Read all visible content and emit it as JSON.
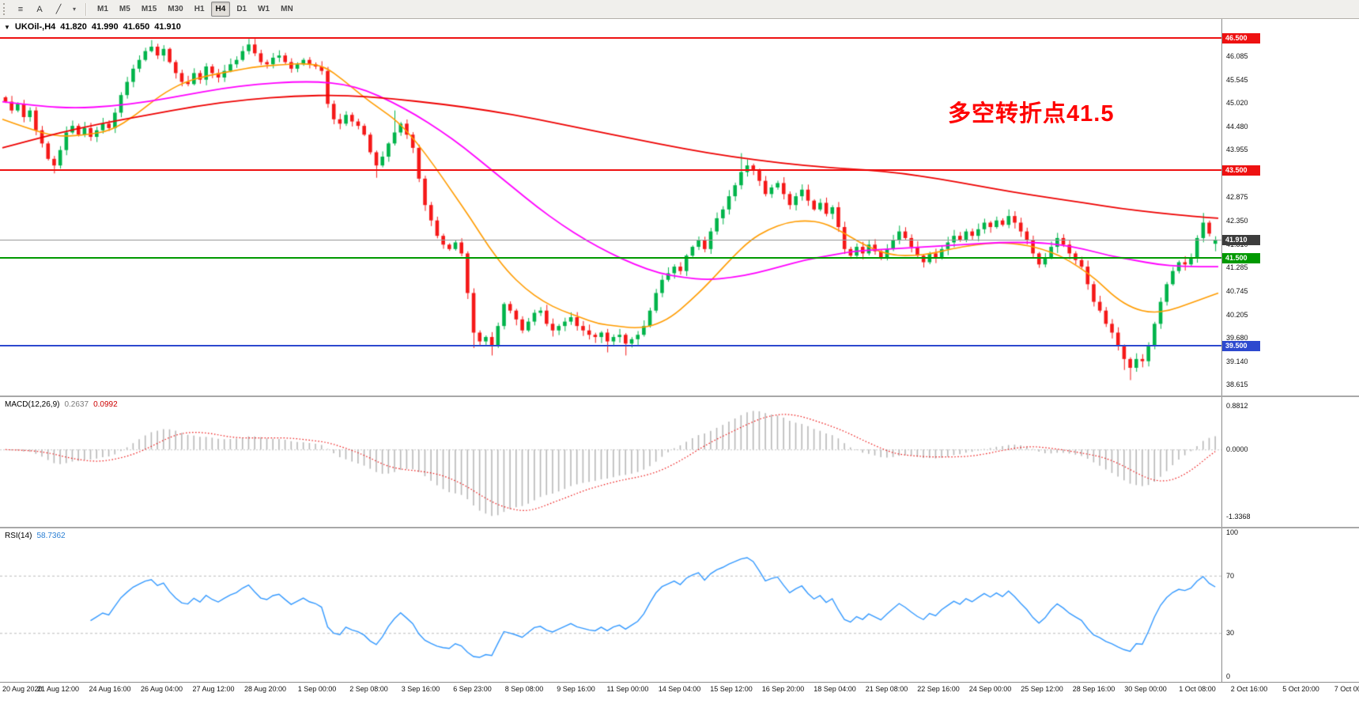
{
  "toolbar": {
    "tools": [
      {
        "name": "chart-tools-icon",
        "glyph": "≡"
      },
      {
        "name": "text-label-tool-icon",
        "glyph": "A"
      },
      {
        "name": "trendline-tool-icon",
        "glyph": "╱"
      },
      {
        "name": "drawing-tools-dropdown-icon",
        "glyph": "▾"
      }
    ],
    "timeframes": [
      "M1",
      "M5",
      "M15",
      "M30",
      "H1",
      "H4",
      "D1",
      "W1",
      "MN"
    ],
    "active_timeframe": "H4"
  },
  "symbol_line": {
    "marker": "▼",
    "title": "UKOil-,H4",
    "open": "41.820",
    "high": "41.990",
    "low": "41.650",
    "close": "41.910"
  },
  "annotation": {
    "text": "多空转折点41.5",
    "color": "#ff0000"
  },
  "chart_data": {
    "type": "candlestick",
    "symbol": "UKOil",
    "timeframe": "H4",
    "title": "UKOil H4 candlestick chart with MAs, horizontal levels, MACD and RSI",
    "colors": {
      "up": "#00b44a",
      "down": "#f51818",
      "ma_fast": "#ff9c00",
      "ma_mid": "#ff00ff",
      "ma_slow": "#ee0000",
      "current_price_badge": "#3c3c3c",
      "current_price_line": "#9a9a9a"
    },
    "y_axis": {
      "range": [
        38.37,
        46.93
      ],
      "ticks": [
        46.085,
        45.545,
        45.02,
        44.48,
        43.955,
        43.415,
        42.875,
        42.35,
        41.81,
        41.285,
        40.745,
        40.205,
        39.68,
        39.14,
        38.615
      ]
    },
    "x_labels": [
      "20 Aug 2020",
      "21 Aug 12:00",
      "24 Aug 16:00",
      "26 Aug 04:00",
      "27 Aug 12:00",
      "28 Aug 20:00",
      "1 Sep 00:00",
      "2 Sep 08:00",
      "3 Sep 16:00",
      "6 Sep 23:00",
      "8 Sep 08:00",
      "9 Sep 16:00",
      "11 Sep 00:00",
      "14 Sep 04:00",
      "15 Sep 12:00",
      "16 Sep 20:00",
      "18 Sep 04:00",
      "21 Sep 08:00",
      "22 Sep 16:00",
      "24 Sep 00:00",
      "25 Sep 12:00",
      "28 Sep 16:00",
      "30 Sep 00:00",
      "1 Oct 08:00",
      "2 Oct 16:00",
      "5 Oct 20:00",
      "7 Oct 00:00"
    ],
    "first_open": 45.15,
    "closes": [
      45.05,
      44.85,
      45.0,
      44.7,
      44.85,
      44.4,
      44.1,
      43.75,
      43.6,
      43.95,
      44.35,
      44.5,
      44.3,
      44.45,
      44.25,
      44.4,
      44.55,
      44.45,
      44.8,
      45.2,
      45.5,
      45.8,
      46.0,
      46.2,
      46.3,
      46.1,
      46.25,
      45.95,
      45.7,
      45.5,
      45.45,
      45.7,
      45.55,
      45.85,
      45.7,
      45.6,
      45.75,
      45.9,
      46.0,
      46.2,
      46.35,
      46.15,
      45.95,
      45.9,
      46.05,
      46.1,
      45.95,
      45.8,
      45.9,
      46.0,
      45.9,
      45.85,
      45.75,
      45.0,
      44.65,
      44.55,
      44.75,
      44.6,
      44.5,
      44.3,
      43.9,
      43.6,
      43.8,
      44.1,
      44.35,
      44.55,
      44.3,
      44.0,
      43.3,
      42.7,
      42.35,
      42.0,
      41.8,
      41.7,
      41.85,
      41.6,
      40.7,
      39.8,
      39.6,
      39.7,
      39.5,
      39.95,
      40.45,
      40.3,
      40.1,
      39.85,
      40.05,
      40.25,
      40.3,
      40.0,
      39.85,
      39.95,
      40.05,
      40.15,
      39.95,
      39.85,
      39.75,
      39.7,
      39.8,
      39.6,
      39.7,
      39.75,
      39.55,
      39.65,
      39.75,
      39.95,
      40.3,
      40.7,
      41.0,
      41.15,
      41.3,
      41.2,
      41.55,
      41.75,
      41.9,
      41.7,
      42.1,
      42.4,
      42.6,
      42.9,
      43.15,
      43.45,
      43.6,
      43.5,
      43.25,
      42.95,
      43.1,
      43.2,
      42.95,
      42.7,
      42.9,
      43.05,
      42.8,
      42.6,
      42.75,
      42.5,
      42.65,
      42.2,
      41.7,
      41.55,
      41.75,
      41.6,
      41.8,
      41.65,
      41.5,
      41.7,
      41.9,
      42.1,
      41.95,
      41.75,
      41.55,
      41.4,
      41.6,
      41.5,
      41.7,
      41.85,
      42.0,
      41.9,
      42.1,
      42.0,
      42.15,
      42.3,
      42.2,
      42.35,
      42.25,
      42.45,
      42.3,
      42.1,
      41.9,
      41.6,
      41.35,
      41.5,
      41.75,
      41.95,
      41.8,
      41.6,
      41.45,
      41.3,
      40.9,
      40.5,
      40.3,
      40.0,
      39.8,
      39.5,
      39.2,
      39.0,
      39.2,
      39.15,
      39.5,
      40.0,
      40.5,
      40.9,
      41.2,
      41.4,
      41.35,
      41.5,
      41.95,
      42.3,
      42.05,
      41.91
    ],
    "last_candle": {
      "open": 41.82,
      "high": 41.99,
      "low": 41.65,
      "close": 41.91
    },
    "wick_overrides": {
      "8": [
        null,
        43.42
      ],
      "24": [
        46.45,
        null
      ],
      "40": [
        46.48,
        null
      ],
      "61": [
        null,
        43.32
      ],
      "64": [
        44.85,
        null
      ],
      "77": [
        null,
        39.45
      ],
      "80": [
        null,
        39.28
      ],
      "99": [
        null,
        39.35
      ],
      "102": [
        null,
        39.28
      ],
      "121": [
        43.88,
        null
      ],
      "165": [
        42.6,
        null
      ],
      "184": [
        null,
        38.95
      ],
      "185": [
        null,
        38.72
      ],
      "197": [
        42.52,
        null
      ]
    },
    "levels": [
      {
        "name": "resistance-line-46500",
        "value": 46.5,
        "label": "46.500",
        "color": "#ee1111",
        "badge_bg": "#ee1111"
      },
      {
        "name": "resistance-line-43500",
        "value": 43.5,
        "label": "43.500",
        "color": "#ee1111",
        "badge_bg": "#ee1111"
      },
      {
        "name": "pivot-line-41500",
        "value": 41.5,
        "label": "41.500",
        "color": "#009900",
        "badge_bg": "#009900"
      },
      {
        "name": "support-line-39500",
        "value": 39.5,
        "label": "39.500",
        "color": "#2d49cf",
        "badge_bg": "#2d49cf"
      }
    ],
    "current_price": {
      "value": 41.91,
      "label": "41.910"
    },
    "moving_averages": [
      {
        "name": "ma-fast-orange",
        "color": "#ff9c00",
        "points": [
          [
            0,
            44.65
          ],
          [
            0.02,
            44.45
          ],
          [
            0.045,
            44.25
          ],
          [
            0.07,
            44.3
          ],
          [
            0.09,
            44.4
          ],
          [
            0.11,
            44.75
          ],
          [
            0.13,
            45.2
          ],
          [
            0.15,
            45.5
          ],
          [
            0.17,
            45.65
          ],
          [
            0.19,
            45.75
          ],
          [
            0.21,
            45.85
          ],
          [
            0.235,
            45.9
          ],
          [
            0.25,
            45.92
          ],
          [
            0.265,
            45.85
          ],
          [
            0.28,
            45.55
          ],
          [
            0.295,
            45.2
          ],
          [
            0.31,
            44.9
          ],
          [
            0.325,
            44.6
          ],
          [
            0.34,
            44.15
          ],
          [
            0.355,
            43.6
          ],
          [
            0.37,
            43.0
          ],
          [
            0.385,
            42.4
          ],
          [
            0.4,
            41.75
          ],
          [
            0.415,
            41.2
          ],
          [
            0.43,
            40.8
          ],
          [
            0.445,
            40.5
          ],
          [
            0.46,
            40.3
          ],
          [
            0.475,
            40.15
          ],
          [
            0.49,
            40.0
          ],
          [
            0.505,
            39.95
          ],
          [
            0.52,
            39.9
          ],
          [
            0.535,
            39.95
          ],
          [
            0.55,
            40.15
          ],
          [
            0.565,
            40.5
          ],
          [
            0.58,
            40.9
          ],
          [
            0.6,
            41.5
          ],
          [
            0.615,
            41.9
          ],
          [
            0.63,
            42.15
          ],
          [
            0.645,
            42.3
          ],
          [
            0.66,
            42.35
          ],
          [
            0.675,
            42.3
          ],
          [
            0.69,
            42.1
          ],
          [
            0.705,
            41.85
          ],
          [
            0.72,
            41.65
          ],
          [
            0.735,
            41.55
          ],
          [
            0.75,
            41.55
          ],
          [
            0.765,
            41.6
          ],
          [
            0.78,
            41.7
          ],
          [
            0.8,
            41.8
          ],
          [
            0.82,
            41.85
          ],
          [
            0.84,
            41.8
          ],
          [
            0.855,
            41.7
          ],
          [
            0.87,
            41.55
          ],
          [
            0.885,
            41.3
          ],
          [
            0.9,
            41.0
          ],
          [
            0.915,
            40.6
          ],
          [
            0.93,
            40.35
          ],
          [
            0.945,
            40.25
          ],
          [
            0.96,
            40.3
          ],
          [
            0.975,
            40.45
          ],
          [
            0.99,
            40.6
          ],
          [
            1,
            40.7
          ]
        ]
      },
      {
        "name": "ma-mid-magenta",
        "color": "#ff00ff",
        "points": [
          [
            0,
            45.05
          ],
          [
            0.03,
            44.95
          ],
          [
            0.06,
            44.9
          ],
          [
            0.09,
            44.95
          ],
          [
            0.12,
            45.05
          ],
          [
            0.15,
            45.2
          ],
          [
            0.18,
            45.35
          ],
          [
            0.21,
            45.45
          ],
          [
            0.24,
            45.5
          ],
          [
            0.26,
            45.5
          ],
          [
            0.28,
            45.45
          ],
          [
            0.3,
            45.3
          ],
          [
            0.32,
            45.05
          ],
          [
            0.34,
            44.75
          ],
          [
            0.36,
            44.4
          ],
          [
            0.38,
            44.0
          ],
          [
            0.4,
            43.55
          ],
          [
            0.42,
            43.1
          ],
          [
            0.44,
            42.65
          ],
          [
            0.46,
            42.25
          ],
          [
            0.48,
            41.9
          ],
          [
            0.5,
            41.6
          ],
          [
            0.52,
            41.35
          ],
          [
            0.54,
            41.15
          ],
          [
            0.56,
            41.05
          ],
          [
            0.58,
            41.0
          ],
          [
            0.6,
            41.05
          ],
          [
            0.62,
            41.15
          ],
          [
            0.64,
            41.3
          ],
          [
            0.66,
            41.45
          ],
          [
            0.68,
            41.55
          ],
          [
            0.7,
            41.65
          ],
          [
            0.73,
            41.7
          ],
          [
            0.76,
            41.75
          ],
          [
            0.79,
            41.8
          ],
          [
            0.82,
            41.85
          ],
          [
            0.85,
            41.85
          ],
          [
            0.87,
            41.8
          ],
          [
            0.89,
            41.7
          ],
          [
            0.91,
            41.55
          ],
          [
            0.93,
            41.45
          ],
          [
            0.95,
            41.35
          ],
          [
            0.97,
            41.3
          ],
          [
            1,
            41.3
          ]
        ]
      },
      {
        "name": "ma-slow-red",
        "color": "#ee0000",
        "points": [
          [
            0,
            44.0
          ],
          [
            0.04,
            44.3
          ],
          [
            0.08,
            44.55
          ],
          [
            0.12,
            44.75
          ],
          [
            0.16,
            44.95
          ],
          [
            0.2,
            45.1
          ],
          [
            0.24,
            45.18
          ],
          [
            0.28,
            45.2
          ],
          [
            0.32,
            45.12
          ],
          [
            0.36,
            45.0
          ],
          [
            0.4,
            44.85
          ],
          [
            0.44,
            44.65
          ],
          [
            0.48,
            44.42
          ],
          [
            0.52,
            44.2
          ],
          [
            0.56,
            43.98
          ],
          [
            0.6,
            43.8
          ],
          [
            0.64,
            43.65
          ],
          [
            0.68,
            43.55
          ],
          [
            0.71,
            43.5
          ],
          [
            0.74,
            43.42
          ],
          [
            0.77,
            43.3
          ],
          [
            0.8,
            43.15
          ],
          [
            0.83,
            43.0
          ],
          [
            0.86,
            42.87
          ],
          [
            0.89,
            42.75
          ],
          [
            0.92,
            42.62
          ],
          [
            0.95,
            42.52
          ],
          [
            0.98,
            42.44
          ],
          [
            1,
            42.4
          ]
        ]
      }
    ],
    "indicators": [
      {
        "type": "macd-histogram",
        "label": "MACD(12,26,9)",
        "values_text": [
          "0.2637",
          "0.0992"
        ],
        "params": [
          12,
          26,
          9
        ],
        "range": [
          -1.55,
          1.05
        ],
        "ticks": [
          {
            "label": "0.8812",
            "value": 0.8812
          },
          {
            "label": "0.0000",
            "value": 0
          },
          {
            "label": "-1.3368",
            "value": -1.3368
          }
        ],
        "histogram_color": "#b8b8b8",
        "signal_color": "#ee1111",
        "derived_from": "MACD(12,26,9) of closes"
      },
      {
        "type": "rsi-line",
        "label": "RSI(14)",
        "value_text": "58.7362",
        "period": 14,
        "range": [
          -3,
          103
        ],
        "ticks": [
          {
            "label": "100",
            "value": 100
          },
          {
            "label": "70",
            "value": 70
          },
          {
            "label": "30",
            "value": 30
          },
          {
            "label": "0",
            "value": 0
          }
        ],
        "dashed_levels": [
          70,
          30
        ],
        "color": "#3399ff",
        "derived_from": "RSI(14) of closes"
      }
    ]
  }
}
